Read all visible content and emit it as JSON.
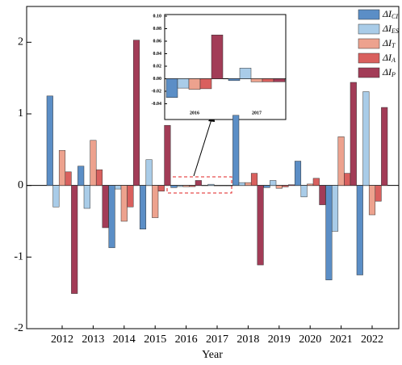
{
  "chart_data": [
    {
      "type": "bar",
      "x_label": "Year",
      "categories": [
        "2012",
        "2013",
        "2014",
        "2015",
        "2016",
        "2017",
        "2018",
        "2019",
        "2020",
        "2021",
        "2022"
      ],
      "series": [
        {
          "name": "ΔI_CI",
          "color": "#5b8ec6",
          "values": [
            1.25,
            0.27,
            -0.87,
            -0.61,
            -0.03,
            -0.003,
            0.98,
            -0.03,
            0.34,
            -1.32,
            -1.25
          ]
        },
        {
          "name": "ΔI_ES",
          "color": "#a9cce8",
          "values": [
            -0.3,
            -0.32,
            -0.05,
            0.36,
            -0.015,
            0.017,
            0.04,
            0.07,
            -0.16,
            -0.64,
            1.31
          ]
        },
        {
          "name": "ΔI_T",
          "color": "#eda28e",
          "values": [
            0.49,
            0.63,
            -0.5,
            -0.45,
            -0.017,
            -0.005,
            0.04,
            -0.04,
            0.02,
            0.68,
            -0.41
          ]
        },
        {
          "name": "ΔI_A",
          "color": "#d9605e",
          "values": [
            0.19,
            0.22,
            -0.3,
            -0.08,
            -0.016,
            -0.005,
            0.17,
            -0.02,
            0.1,
            0.17,
            -0.22
          ]
        },
        {
          "name": "ΔI_P",
          "color": "#a23c57",
          "values": [
            -1.51,
            -0.59,
            2.03,
            0.84,
            0.07,
            -0.005,
            -1.11,
            0.01,
            -0.27,
            1.44,
            1.09
          ]
        }
      ],
      "ylim": [
        -2,
        2.5
      ],
      "yticks": [
        -2,
        -1,
        0,
        1,
        2
      ],
      "legend": "upper right"
    },
    {
      "type": "bar",
      "categories": [
        "2016",
        "2017"
      ],
      "series": [
        {
          "color": "#5b8ec6",
          "values": [
            -0.03,
            -0.003
          ]
        },
        {
          "color": "#a9cce8",
          "values": [
            -0.015,
            0.017
          ]
        },
        {
          "color": "#eda28e",
          "values": [
            -0.017,
            -0.005
          ]
        },
        {
          "color": "#d9605e",
          "values": [
            -0.016,
            -0.005
          ]
        },
        {
          "color": "#a23c57",
          "values": [
            0.07,
            -0.005
          ]
        }
      ],
      "ylim": [
        -0.04,
        0.1
      ],
      "yticks": [
        {
          "value": -0.04,
          "label": "-0.04"
        },
        {
          "value": -0.02,
          "label": "-0.02"
        },
        {
          "value": 0,
          "label": "0.00"
        },
        0.02,
        0.04,
        0.06,
        0.08,
        {
          "value": 0.1,
          "label": "0.10"
        }
      ]
    }
  ]
}
